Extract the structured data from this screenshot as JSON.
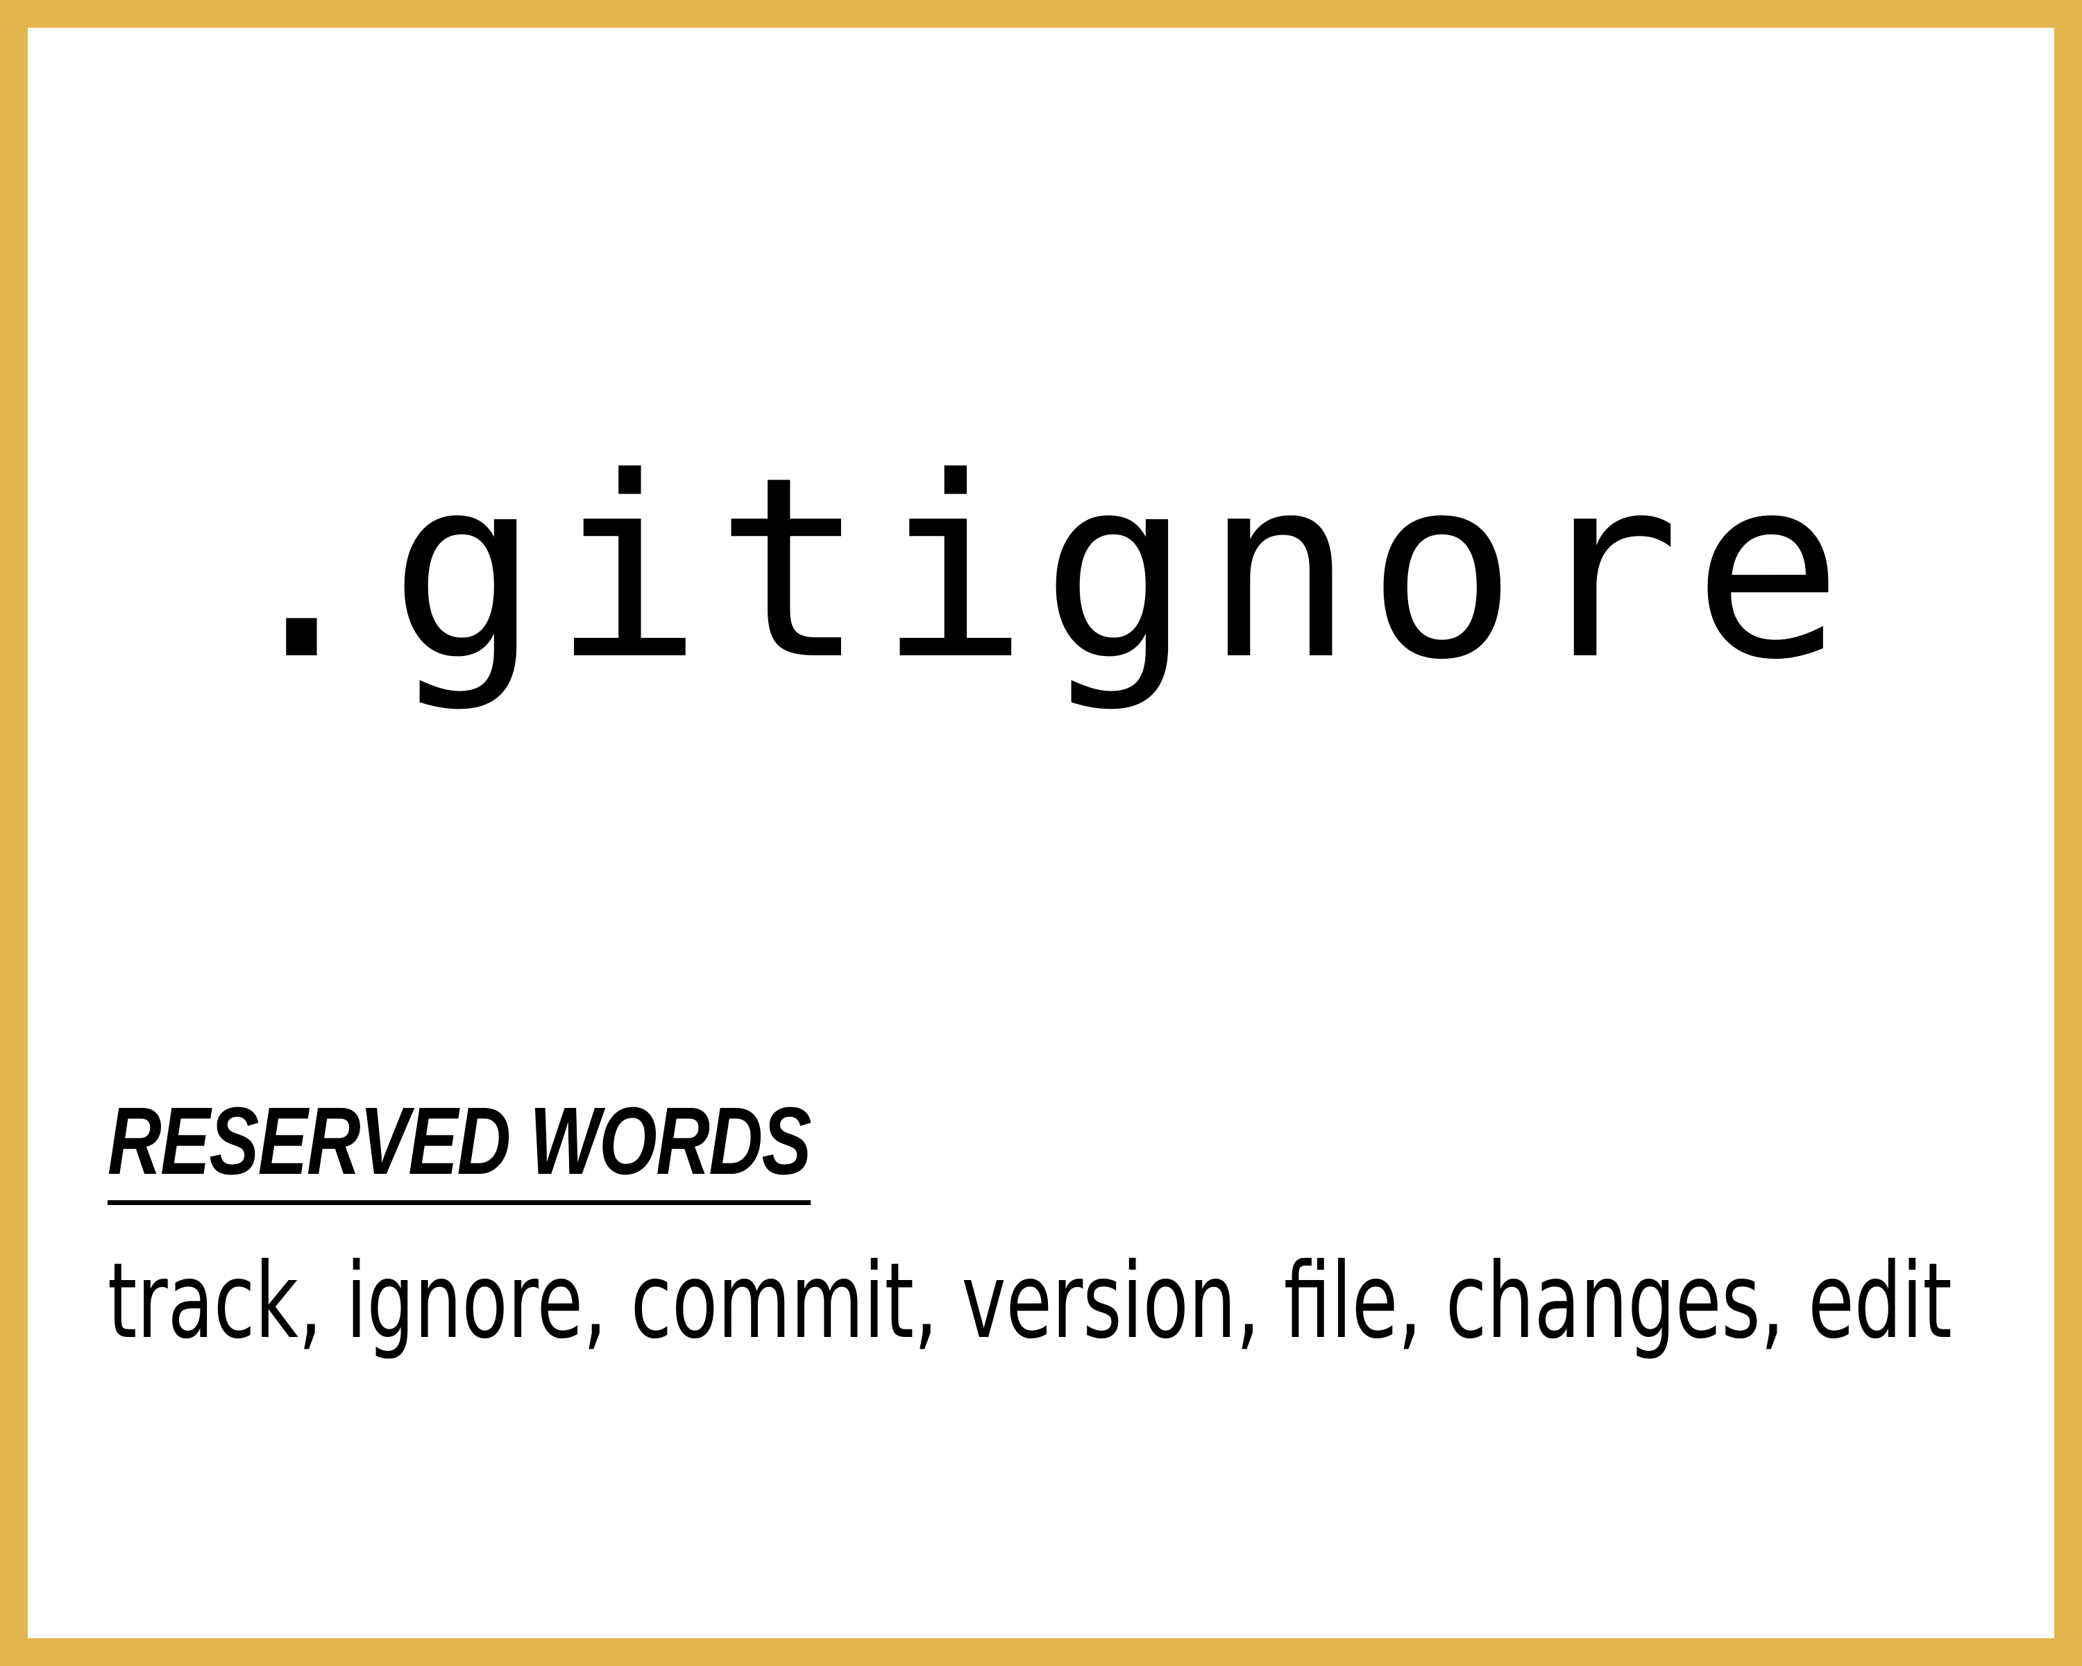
{
  "title": ".gitignore",
  "section": {
    "heading": "RESERVED WORDS",
    "words": "track, ignore, commit, version, file, changes, edit"
  },
  "colors": {
    "border": "#E3B54D",
    "background": "#FFFFFF",
    "text": "#000000"
  }
}
